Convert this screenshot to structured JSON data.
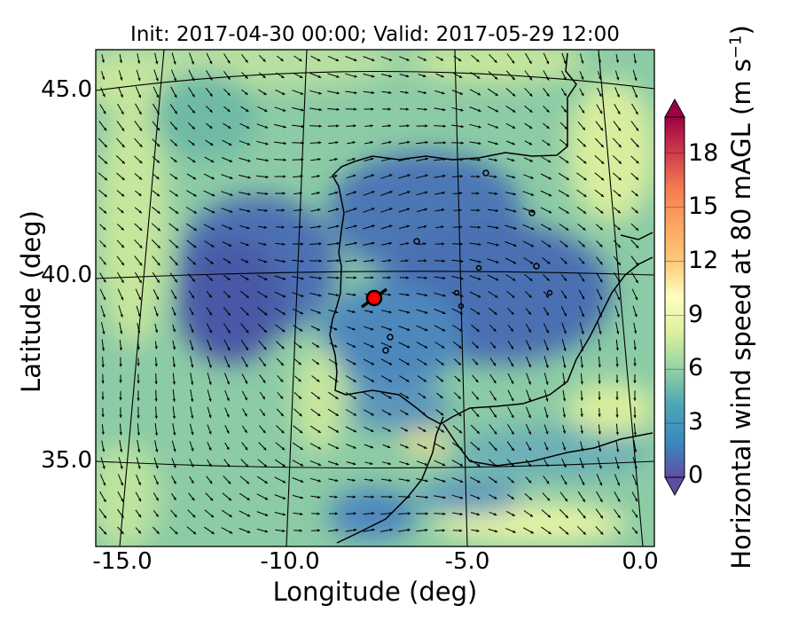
{
  "title": "Init: 2017-04-30 00:00; Valid: 2017-05-29 12:00",
  "x_axis": {
    "label": "Longitude (deg)",
    "ticks": [
      "-15.0",
      "-10.0",
      "-5.0",
      "0.0"
    ]
  },
  "y_axis": {
    "label": "Latitude (deg)",
    "ticks": [
      "45.0",
      "40.0",
      "35.0"
    ]
  },
  "colorbar": {
    "label": "Horizontal wind speed at 80 mAGL (m s",
    "label_sup": "−1",
    "label_end": ")",
    "ticks": [
      "18",
      "15",
      "12",
      "9",
      "6",
      "3",
      "0"
    ],
    "min": 0,
    "max": 20,
    "extend": "both",
    "colormap": "Spectral_r",
    "colors": [
      "#5e4fa2",
      "#3f6bb0",
      "#3a89c0",
      "#4da6b5",
      "#6cc0a5",
      "#94d1a3",
      "#bce4a0",
      "#dbf09e",
      "#f2f9b0",
      "#fffebe",
      "#fee793",
      "#fdc978",
      "#fca562",
      "#f47d4e",
      "#e65a45",
      "#d03c4e",
      "#b21b4c",
      "#9e0142"
    ]
  },
  "map": {
    "projection": "conic",
    "lon_range": [
      -16,
      0.2
    ],
    "lat_range": [
      33,
      46
    ],
    "gridlines": true,
    "marker": {
      "lon": -7.6,
      "lat": 39.4,
      "color": "#ff0000"
    },
    "field": "wind speed with wind vectors"
  }
}
